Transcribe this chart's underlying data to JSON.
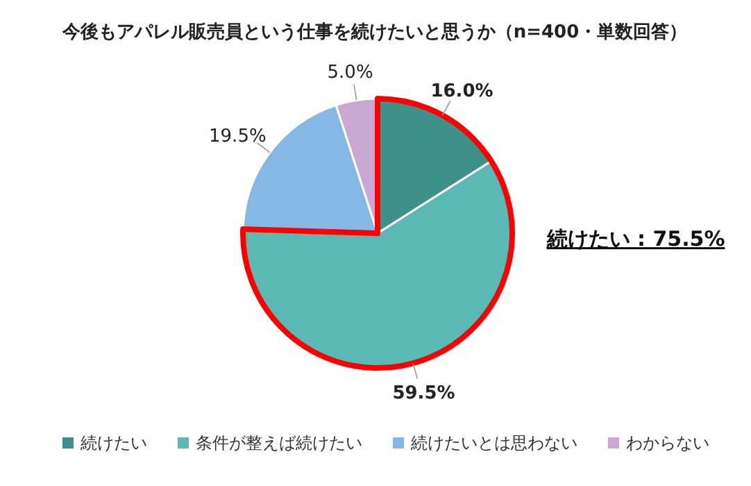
{
  "chart_data": {
    "type": "pie",
    "title": "今後もアパレル販売員という仕事を続けたいと思うか（n=400・単数回答）",
    "categories": [
      "続けたい",
      "条件が整えば続けたい",
      "続けたいとは思わない",
      "わからない"
    ],
    "values": [
      16.0,
      59.5,
      19.5,
      5.0
    ],
    "value_labels": [
      "16.0%",
      "59.5%",
      "19.5%",
      "5.0%"
    ],
    "colors": [
      "#3f9089",
      "#5bb9b3",
      "#85b8e5",
      "#c9a9d3"
    ],
    "annotations": [
      "続けたい : 75.5%"
    ],
    "legend": "bottom"
  }
}
